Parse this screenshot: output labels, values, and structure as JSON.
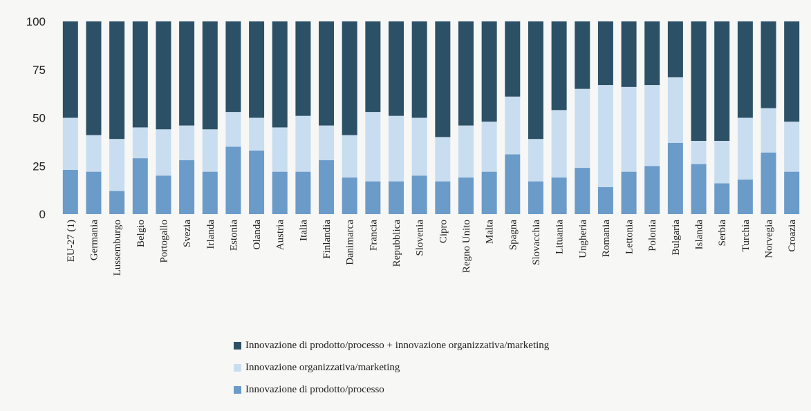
{
  "chart_data": {
    "type": "bar",
    "stacked": true,
    "percent_stacked": true,
    "title": "",
    "xlabel": "",
    "ylabel": "",
    "ylim": [
      0,
      100
    ],
    "yticks": [
      0,
      25,
      50,
      75,
      100
    ],
    "grid": false,
    "legend_position": "bottom",
    "categories": [
      "EU-27 (1)",
      "Germania",
      "Lussemburgo",
      "Belgio",
      "Portogallo",
      "Svezia",
      "Irlanda",
      "Estonia",
      "Olanda",
      "Austria",
      "Italia",
      "Finlandia",
      "Danimarca",
      "Francia",
      "Repubblica",
      "Slovenia",
      "Cipro",
      "Regno Unito",
      "Malta",
      "Spagna",
      "Slovacchia",
      "Lituania",
      "Ungheria",
      "Romania",
      "Lettonia",
      "Polonia",
      "Bulgaria",
      "Islanda",
      "Serbia",
      "Turchia",
      "Norvegia",
      "Croazia"
    ],
    "series": [
      {
        "name": "Innovazione di prodotto/processo",
        "color": "#6b9bc9",
        "values": [
          23,
          22,
          12,
          29,
          20,
          28,
          22,
          35,
          33,
          22,
          22,
          28,
          19,
          17,
          17,
          20,
          17,
          19,
          22,
          31,
          17,
          19,
          24,
          14,
          22,
          25,
          37,
          26,
          16,
          18,
          32,
          22
        ]
      },
      {
        "name": "Innovazione organizzativa/marketing",
        "color": "#c9ddf0",
        "values": [
          27,
          19,
          27,
          16,
          24,
          18,
          22,
          18,
          17,
          23,
          29,
          18,
          22,
          36,
          34,
          30,
          23,
          27,
          26,
          30,
          22,
          35,
          41,
          53,
          44,
          42,
          34,
          12,
          22,
          32,
          23,
          26
        ]
      },
      {
        "name": "Innovazione di prodotto/processo + innovazione organizzativa/marketing",
        "color": "#2c5166",
        "values": [
          50,
          59,
          61,
          55,
          56,
          54,
          56,
          47,
          50,
          55,
          49,
          54,
          59,
          47,
          49,
          50,
          60,
          54,
          52,
          39,
          61,
          46,
          35,
          33,
          34,
          33,
          29,
          62,
          62,
          50,
          45,
          52
        ]
      }
    ],
    "legend": [
      {
        "label": "Innovazione di prodotto/processo + innovazione organizzativa/marketing",
        "color": "#2c5166"
      },
      {
        "label": "Innovazione organizzativa/marketing",
        "color": "#c9ddf0"
      },
      {
        "label": "Innovazione di prodotto/processo",
        "color": "#6b9bc9"
      }
    ]
  }
}
